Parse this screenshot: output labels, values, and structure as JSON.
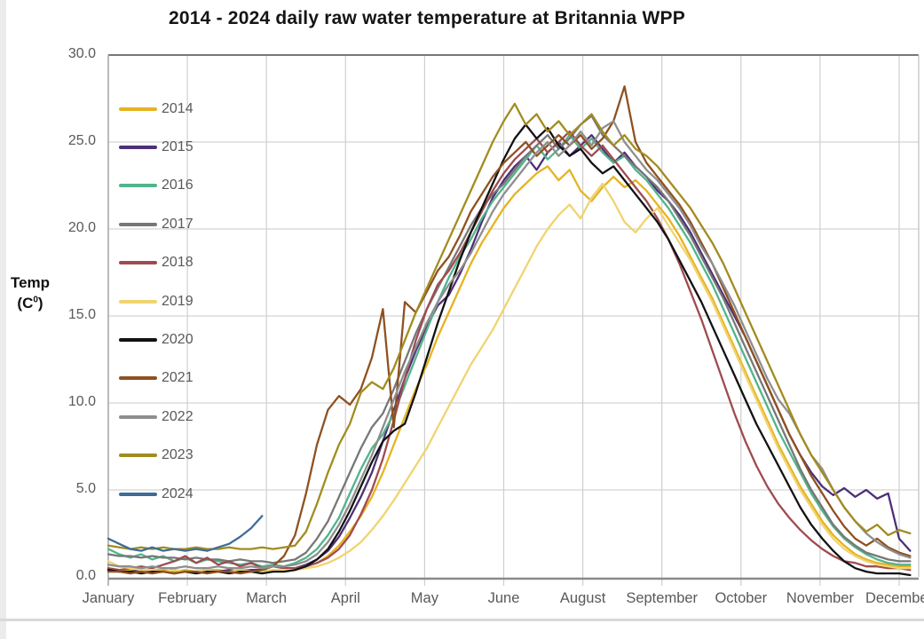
{
  "title": "2014 - 2024 daily raw water temperature at Britannia WPP",
  "y_axis": {
    "label_line1": "Temp",
    "label_pre": "(C",
    "label_sup": "0",
    "label_post": ")"
  },
  "chart_data": {
    "type": "line",
    "title": "2014 - 2024 daily raw water temperature at Britannia WPP",
    "ylabel": "Temp (C0)",
    "ylim": [
      0,
      30
    ],
    "y_ticks": [
      "30.0",
      "25.0",
      "20.0",
      "15.0",
      "10.0",
      "5.0",
      "0.0"
    ],
    "x_ticks": [
      "January",
      "February",
      "March",
      "April",
      "May",
      "June",
      "August",
      "September",
      "October",
      "November",
      "December"
    ],
    "x_tick_interval_days": 36,
    "sample_step_days": 5,
    "grid": true,
    "legend_position": "inside-left",
    "series": [
      {
        "name": "2014",
        "color": "#e6b322",
        "start_day": 1,
        "values": [
          0.5,
          0.4,
          0.4,
          0.3,
          0.4,
          0.4,
          0.3,
          0.4,
          0.3,
          0.4,
          0.4,
          0.3,
          0.4,
          0.4,
          0.3,
          0.4,
          0.4,
          0.5,
          0.6,
          0.8,
          1.2,
          1.8,
          2.6,
          3.5,
          4.6,
          6.0,
          7.6,
          9.2,
          10.8,
          12.2,
          13.8,
          15.2,
          16.6,
          18.0,
          19.2,
          20.2,
          21.2,
          22.0,
          22.6,
          23.2,
          23.6,
          22.8,
          23.4,
          22.2,
          21.6,
          22.4,
          23.0,
          22.4,
          22.8,
          22.2,
          21.4,
          20.6,
          19.6,
          18.4,
          17.2,
          16.0,
          14.6,
          13.2,
          11.8,
          10.4,
          9.0,
          7.6,
          6.4,
          5.2,
          4.2,
          3.2,
          2.4,
          1.8,
          1.3,
          1.0,
          0.8,
          0.7,
          0.6,
          0.6
        ]
      },
      {
        "name": "2015",
        "color": "#4e2f78",
        "start_day": 1,
        "values": [
          0.4,
          0.3,
          0.3,
          0.4,
          0.3,
          0.3,
          0.4,
          0.3,
          0.3,
          0.4,
          0.3,
          0.4,
          0.3,
          0.4,
          0.4,
          0.3,
          0.4,
          0.5,
          0.7,
          1.0,
          1.5,
          2.3,
          3.4,
          4.6,
          6.0,
          7.8,
          9.6,
          11.4,
          13.0,
          14.4,
          15.6,
          16.2,
          17.4,
          18.8,
          20.4,
          21.8,
          22.8,
          23.6,
          24.2,
          23.4,
          24.4,
          25.0,
          24.2,
          24.8,
          25.4,
          24.6,
          23.8,
          24.4,
          23.6,
          23.0,
          22.2,
          21.6,
          20.8,
          19.8,
          18.6,
          17.4,
          16.2,
          15.0,
          13.8,
          12.4,
          11.0,
          9.6,
          8.2,
          7.0,
          6.0,
          5.2,
          4.7,
          5.1,
          4.6,
          5.0,
          4.5,
          4.8,
          2.2,
          1.5
        ]
      },
      {
        "name": "2016",
        "color": "#52b48c",
        "start_day": 1,
        "values": [
          1.6,
          1.3,
          1.1,
          1.3,
          1.0,
          1.2,
          0.9,
          1.1,
          0.8,
          1.0,
          0.9,
          0.8,
          0.7,
          0.8,
          0.6,
          0.7,
          0.6,
          0.8,
          1.1,
          1.6,
          2.4,
          3.4,
          4.8,
          6.2,
          7.4,
          8.2,
          9.4,
          11.0,
          12.6,
          14.2,
          15.8,
          17.2,
          18.4,
          19.4,
          20.6,
          21.6,
          22.4,
          23.2,
          24.0,
          24.8,
          24.0,
          24.6,
          25.4,
          24.6,
          25.2,
          24.4,
          23.8,
          24.2,
          23.4,
          22.8,
          22.0,
          21.2,
          20.2,
          19.2,
          18.0,
          16.8,
          15.4,
          14.0,
          12.6,
          11.2,
          9.8,
          8.4,
          7.2,
          6.0,
          4.8,
          3.8,
          2.9,
          2.2,
          1.7,
          1.3,
          1.0,
          0.8,
          0.7,
          0.7
        ]
      },
      {
        "name": "2017",
        "color": "#777777",
        "start_day": 1,
        "values": [
          1.3,
          1.2,
          1.2,
          1.1,
          1.2,
          1.1,
          1.1,
          1.0,
          1.1,
          1.0,
          1.0,
          0.9,
          1.0,
          0.9,
          0.9,
          0.8,
          0.9,
          1.0,
          1.4,
          2.2,
          3.2,
          4.6,
          6.0,
          7.4,
          8.6,
          9.4,
          10.8,
          12.4,
          14.0,
          15.4,
          16.6,
          17.8,
          19.0,
          20.2,
          21.2,
          22.0,
          22.6,
          23.4,
          24.2,
          24.8,
          25.4,
          24.6,
          25.2,
          26.0,
          26.5,
          25.4,
          24.8,
          24.2,
          23.6,
          23.0,
          22.4,
          21.6,
          20.6,
          19.6,
          18.4,
          17.2,
          16.0,
          14.6,
          13.2,
          11.8,
          10.4,
          9.0,
          7.6,
          6.2,
          5.0,
          4.0,
          3.0,
          2.3,
          1.8,
          1.4,
          1.2,
          1.0,
          0.9,
          0.9
        ]
      },
      {
        "name": "2018",
        "color": "#9e4b50",
        "start_day": 1,
        "values": [
          0.5,
          0.4,
          0.5,
          0.6,
          0.5,
          0.7,
          0.9,
          1.2,
          0.8,
          1.1,
          0.7,
          0.9,
          0.6,
          0.8,
          0.5,
          0.6,
          0.5,
          0.5,
          0.6,
          0.8,
          1.1,
          1.6,
          2.4,
          3.6,
          5.0,
          6.8,
          9.0,
          11.4,
          13.6,
          15.4,
          16.8,
          17.6,
          18.6,
          19.8,
          21.0,
          22.2,
          23.2,
          24.0,
          24.6,
          25.2,
          24.4,
          25.0,
          25.6,
          24.8,
          24.2,
          24.8,
          24.0,
          23.2,
          22.4,
          21.6,
          20.6,
          19.4,
          18.0,
          16.4,
          14.8,
          13.0,
          11.2,
          9.4,
          7.8,
          6.4,
          5.2,
          4.2,
          3.4,
          2.7,
          2.1,
          1.6,
          1.2,
          0.9,
          0.8,
          0.6,
          0.6,
          0.5,
          0.5,
          0.4
        ]
      },
      {
        "name": "2019",
        "color": "#f0d470",
        "start_day": 1,
        "values": [
          0.9,
          0.6,
          0.5,
          0.4,
          0.4,
          0.3,
          0.4,
          0.3,
          0.3,
          0.4,
          0.3,
          0.3,
          0.4,
          0.3,
          0.3,
          0.4,
          0.4,
          0.4,
          0.5,
          0.6,
          0.8,
          1.1,
          1.5,
          2.0,
          2.7,
          3.5,
          4.4,
          5.4,
          6.4,
          7.4,
          8.6,
          9.8,
          11.0,
          12.2,
          13.2,
          14.2,
          15.4,
          16.6,
          17.8,
          19.0,
          20.0,
          20.8,
          21.4,
          20.6,
          21.8,
          22.6,
          21.6,
          20.4,
          19.8,
          20.6,
          21.2,
          20.2,
          19.2,
          18.2,
          17.0,
          15.8,
          14.4,
          13.0,
          11.6,
          10.2,
          8.8,
          7.4,
          6.2,
          5.0,
          4.0,
          3.0,
          2.2,
          1.6,
          1.2,
          0.9,
          0.7,
          0.6,
          0.5,
          0.5
        ]
      },
      {
        "name": "2020",
        "color": "#121212",
        "start_day": 1,
        "values": [
          0.4,
          0.3,
          0.3,
          0.2,
          0.3,
          0.3,
          0.2,
          0.3,
          0.2,
          0.3,
          0.3,
          0.2,
          0.3,
          0.3,
          0.2,
          0.3,
          0.3,
          0.4,
          0.6,
          1.0,
          1.6,
          2.6,
          3.8,
          5.2,
          6.6,
          7.8,
          8.4,
          8.8,
          10.6,
          12.6,
          14.6,
          16.4,
          18.2,
          19.8,
          21.2,
          22.6,
          24.0,
          25.2,
          26.0,
          25.2,
          25.8,
          24.8,
          24.2,
          24.6,
          23.8,
          23.2,
          23.6,
          22.8,
          22.0,
          21.2,
          20.4,
          19.4,
          18.2,
          17.0,
          15.8,
          14.4,
          13.0,
          11.6,
          10.2,
          8.8,
          7.6,
          6.4,
          5.2,
          4.0,
          3.0,
          2.2,
          1.5,
          0.9,
          0.5,
          0.3,
          0.2,
          0.2,
          0.2,
          0.1
        ]
      },
      {
        "name": "2021",
        "color": "#8e5120",
        "start_day": 1,
        "values": [
          0.3,
          0.3,
          0.2,
          0.3,
          0.2,
          0.3,
          0.2,
          0.3,
          0.3,
          0.2,
          0.3,
          0.3,
          0.2,
          0.3,
          0.4,
          0.6,
          1.2,
          2.4,
          4.8,
          7.6,
          9.6,
          10.4,
          9.9,
          10.8,
          12.6,
          15.4,
          8.6,
          15.8,
          15.2,
          16.4,
          17.6,
          18.4,
          19.6,
          21.0,
          22.0,
          23.0,
          23.8,
          24.4,
          25.0,
          24.2,
          24.8,
          25.4,
          24.8,
          25.4,
          24.6,
          25.2,
          26.2,
          28.2,
          25.0,
          23.8,
          23.0,
          22.2,
          21.4,
          20.4,
          19.2,
          18.0,
          16.6,
          15.2,
          13.8,
          12.4,
          11.0,
          9.6,
          8.2,
          7.0,
          5.8,
          4.8,
          3.8,
          2.9,
          2.2,
          1.8,
          2.2,
          1.7,
          1.4,
          1.2
        ]
      },
      {
        "name": "2022",
        "color": "#8e8e8e",
        "start_day": 1,
        "values": [
          0.7,
          0.6,
          0.6,
          0.5,
          0.6,
          0.5,
          0.5,
          0.6,
          0.5,
          0.5,
          0.6,
          0.5,
          0.5,
          0.6,
          0.5,
          0.6,
          0.6,
          0.7,
          0.9,
          1.3,
          2.0,
          3.0,
          4.2,
          5.6,
          7.0,
          8.6,
          10.2,
          11.8,
          13.2,
          14.6,
          15.8,
          16.8,
          17.6,
          18.6,
          19.8,
          21.0,
          22.0,
          22.8,
          23.6,
          24.4,
          25.0,
          24.2,
          24.8,
          25.6,
          24.8,
          25.8,
          26.2,
          25.0,
          24.2,
          23.4,
          22.8,
          22.0,
          21.2,
          20.2,
          19.0,
          18.0,
          16.8,
          15.6,
          14.2,
          12.8,
          11.4,
          10.2,
          9.4,
          8.2,
          7.0,
          6.2,
          5.0,
          4.0,
          3.2,
          2.5,
          2.0,
          1.6,
          1.3,
          1.1
        ]
      },
      {
        "name": "2023",
        "color": "#a28c1f",
        "start_day": 1,
        "values": [
          1.8,
          1.7,
          1.6,
          1.7,
          1.6,
          1.7,
          1.6,
          1.6,
          1.7,
          1.6,
          1.6,
          1.7,
          1.6,
          1.6,
          1.7,
          1.6,
          1.7,
          1.8,
          2.6,
          4.2,
          6.0,
          7.6,
          8.8,
          10.6,
          11.2,
          10.8,
          12.0,
          13.6,
          15.2,
          16.6,
          18.0,
          19.4,
          20.8,
          22.2,
          23.6,
          25.0,
          26.2,
          27.2,
          26.0,
          26.6,
          25.6,
          26.2,
          25.4,
          26.0,
          26.6,
          25.6,
          24.8,
          25.4,
          24.6,
          24.2,
          23.6,
          22.8,
          22.0,
          21.2,
          20.2,
          19.2,
          18.0,
          16.6,
          15.2,
          13.8,
          12.4,
          11.0,
          9.6,
          8.2,
          7.0,
          6.0,
          5.0,
          4.0,
          3.2,
          2.6,
          3.0,
          2.4,
          2.7,
          2.5
        ]
      },
      {
        "name": "2024",
        "color": "#3e6c99",
        "start_day": 1,
        "values": [
          2.2,
          1.9,
          1.6,
          1.5,
          1.7,
          1.5,
          1.6,
          1.5,
          1.6,
          1.5,
          1.7,
          1.9,
          2.3,
          2.8,
          3.5
        ]
      }
    ]
  }
}
